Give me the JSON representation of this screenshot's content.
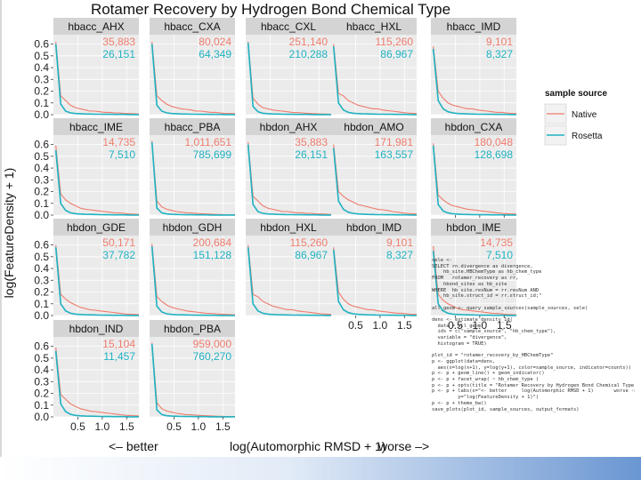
{
  "figure": {
    "title": "Rotamer Recovery by Hydrogen Bond Chemical Type",
    "xlabel": "log(Automorphic RMSD + 1)",
    "xlabel_left": "<– better",
    "xlabel_right": "worse –>",
    "ylabel": "log(FeatureDensity + 1)"
  },
  "legend": {
    "title": "sample source",
    "items": [
      {
        "label": "Native",
        "color": "#ee7b6c"
      },
      {
        "label": "Rosetta",
        "color": "#1fb2c1"
      }
    ]
  },
  "colors": {
    "panel_bg": "#ebebeb",
    "strip_bg": "#d4d4d4",
    "grid": "#ffffff",
    "native": "#ee7b6c",
    "rosetta": "#1fb2c1"
  },
  "code_lines": [
    "sele <-",
    "SELECT rn.divergence as divergence,",
    "    hb_site.HBChemType as hb_chem_type",
    "FROM   rotamer_recovery as rr,",
    "    hbond_sites as hb_site",
    "WHERE  hb_site.resNum = rr.resNum AND",
    "    hb_site.struct_id = rr.struct_id;\"",
    "",
    "all_geom <- query_sample_sources(sample_sources, sele)",
    "",
    "dens <- estimate_density_1d(",
    "  data = all_geom,",
    "  ids = c(\"sample_source\", \"hb_chem_type\"),",
    "  variable = \"divergence\",",
    "  histogram = TRUE)",
    "",
    "plot_id = \"rotamer_recovery_by_HBChemType\"",
    "p <- ggplot(data=dens,",
    "  aes(x=log(x+1), y=log(y+1), color=sample_source, indicator=counts))",
    "p <- p + geom_line() + geom_indicator()",
    "p <- p + facet_wrap( ~ hb_chem_type )",
    "p <- p + opts(title = \"Rotamer Recovery by Hydrogen Bond Chemical Type\")",
    "p <- p + labs(x=\"<- better     log(Automorphic RMSD + 1)       worse ->\",",
    "         y=\"log(FeatureDensity + 1)\")",
    "p <- p + theme_bw()",
    "save_plots(plot_id, sample_sources, output_formats)"
  ],
  "chart_data": {
    "type": "line",
    "x": [
      0.05,
      0.15,
      0.25,
      0.35,
      0.45,
      0.55,
      0.65,
      0.75,
      0.85,
      0.95,
      1.05,
      1.15,
      1.25,
      1.35,
      1.45,
      1.55,
      1.65,
      1.75
    ],
    "xlim": [
      0,
      1.75
    ],
    "ylim": [
      0,
      0.68
    ],
    "x_ticks": [
      "0.5",
      "1.0",
      "1.5"
    ],
    "x_tick_values": [
      0.5,
      1.0,
      1.5
    ],
    "y_ticks": [
      "0.0",
      "0.1",
      "0.2",
      "0.3",
      "0.4",
      "0.5",
      "0.6"
    ],
    "y_tick_values": [
      0,
      0.1,
      0.2,
      0.3,
      0.4,
      0.5,
      0.6
    ],
    "panels": [
      {
        "label": "hbacc_AHX",
        "native_count": "35,883",
        "rosetta_count": "26,151",
        "native": [
          0.62,
          0.16,
          0.12,
          0.08,
          0.06,
          0.05,
          0.04,
          0.03,
          0.03,
          0.025,
          0.02,
          0.02,
          0.015,
          0.015,
          0.01,
          0.01,
          0.008,
          0.005
        ],
        "rosetta": [
          0.6,
          0.09,
          0.03,
          0.015,
          0.01,
          0.008,
          0.006,
          0.005,
          0.004,
          0.004,
          0.003,
          0.003,
          0.002,
          0.002,
          0.002,
          0.001,
          0.001,
          0.001
        ]
      },
      {
        "label": "hbacc_CXA",
        "native_count": "80,024",
        "rosetta_count": "64,349",
        "native": [
          0.62,
          0.16,
          0.12,
          0.09,
          0.07,
          0.06,
          0.05,
          0.045,
          0.04,
          0.03,
          0.03,
          0.025,
          0.02,
          0.02,
          0.015,
          0.01,
          0.01,
          0.008
        ],
        "rosetta": [
          0.6,
          0.08,
          0.03,
          0.015,
          0.01,
          0.008,
          0.006,
          0.005,
          0.004,
          0.004,
          0.003,
          0.003,
          0.002,
          0.002,
          0.002,
          0.001,
          0.001,
          0.001
        ]
      },
      {
        "label": "hbacc_CXL",
        "native_count": "251,140",
        "rosetta_count": "210,288",
        "native": [
          0.62,
          0.14,
          0.09,
          0.06,
          0.05,
          0.04,
          0.035,
          0.03,
          0.025,
          0.02,
          0.018,
          0.015,
          0.012,
          0.01,
          0.008,
          0.006,
          0.005,
          0.004
        ],
        "rosetta": [
          0.61,
          0.07,
          0.025,
          0.012,
          0.008,
          0.006,
          0.005,
          0.004,
          0.003,
          0.003,
          0.002,
          0.002,
          0.002,
          0.001,
          0.001,
          0.001,
          0.001,
          0.001
        ]
      },
      {
        "label": "hbacc_HXL",
        "native_count": "115,260",
        "rosetta_count": "86,967",
        "native": [
          0.6,
          0.18,
          0.16,
          0.12,
          0.1,
          0.08,
          0.07,
          0.06,
          0.05,
          0.05,
          0.04,
          0.035,
          0.03,
          0.025,
          0.02,
          0.015,
          0.012,
          0.01
        ],
        "rosetta": [
          0.58,
          0.1,
          0.04,
          0.02,
          0.012,
          0.009,
          0.007,
          0.006,
          0.005,
          0.004,
          0.004,
          0.003,
          0.003,
          0.002,
          0.002,
          0.002,
          0.001,
          0.001
        ]
      },
      {
        "label": "hbacc_IMD",
        "native_count": "9,101",
        "rosetta_count": "8,327",
        "native": [
          0.58,
          0.2,
          0.14,
          0.1,
          0.08,
          0.07,
          0.06,
          0.05,
          0.05,
          0.04,
          0.035,
          0.03,
          0.025,
          0.02,
          0.02,
          0.015,
          0.01,
          0.01
        ],
        "rosetta": [
          0.56,
          0.12,
          0.05,
          0.025,
          0.015,
          0.01,
          0.008,
          0.006,
          0.005,
          0.004,
          0.004,
          0.003,
          0.003,
          0.002,
          0.002,
          0.002,
          0.001,
          0.001
        ]
      },
      {
        "label": "hbacc_IME",
        "native_count": "14,735",
        "rosetta_count": "7,510",
        "native": [
          0.59,
          0.18,
          0.13,
          0.1,
          0.08,
          0.06,
          0.05,
          0.045,
          0.04,
          0.035,
          0.03,
          0.025,
          0.02,
          0.018,
          0.015,
          0.01,
          0.008,
          0.006
        ],
        "rosetta": [
          0.55,
          0.1,
          0.04,
          0.02,
          0.012,
          0.009,
          0.007,
          0.006,
          0.005,
          0.004,
          0.003,
          0.003,
          0.002,
          0.002,
          0.002,
          0.001,
          0.001,
          0.001
        ]
      },
      {
        "label": "hbacc_PBA",
        "native_count": "1,011,651",
        "rosetta_count": "785,699",
        "native": [
          0.63,
          0.12,
          0.07,
          0.05,
          0.04,
          0.03,
          0.025,
          0.02,
          0.018,
          0.015,
          0.012,
          0.01,
          0.008,
          0.006,
          0.005,
          0.004,
          0.003,
          0.003
        ],
        "rosetta": [
          0.62,
          0.06,
          0.02,
          0.01,
          0.007,
          0.005,
          0.004,
          0.003,
          0.003,
          0.002,
          0.002,
          0.002,
          0.001,
          0.001,
          0.001,
          0.001,
          0.001,
          0.001
        ]
      },
      {
        "label": "hbdon_AHX",
        "native_count": "35,883",
        "rosetta_count": "26,151",
        "native": [
          0.62,
          0.16,
          0.12,
          0.08,
          0.06,
          0.05,
          0.04,
          0.03,
          0.03,
          0.025,
          0.02,
          0.02,
          0.015,
          0.015,
          0.01,
          0.01,
          0.008,
          0.005
        ],
        "rosetta": [
          0.6,
          0.09,
          0.03,
          0.015,
          0.01,
          0.008,
          0.006,
          0.005,
          0.004,
          0.004,
          0.003,
          0.003,
          0.002,
          0.002,
          0.002,
          0.001,
          0.001,
          0.001
        ]
      },
      {
        "label": "hbdon_AMO",
        "native_count": "171,981",
        "rosetta_count": "163,557",
        "native": [
          0.6,
          0.2,
          0.16,
          0.13,
          0.11,
          0.09,
          0.08,
          0.07,
          0.06,
          0.05,
          0.045,
          0.04,
          0.03,
          0.025,
          0.02,
          0.015,
          0.012,
          0.01
        ],
        "rosetta": [
          0.57,
          0.12,
          0.05,
          0.025,
          0.015,
          0.01,
          0.008,
          0.006,
          0.005,
          0.004,
          0.004,
          0.003,
          0.003,
          0.002,
          0.002,
          0.002,
          0.001,
          0.001
        ]
      },
      {
        "label": "hbdon_CXA",
        "native_count": "180,048",
        "rosetta_count": "128,698",
        "native": [
          0.61,
          0.17,
          0.13,
          0.1,
          0.08,
          0.07,
          0.06,
          0.05,
          0.045,
          0.04,
          0.035,
          0.03,
          0.025,
          0.02,
          0.015,
          0.012,
          0.01,
          0.008
        ],
        "rosetta": [
          0.59,
          0.09,
          0.035,
          0.018,
          0.011,
          0.008,
          0.006,
          0.005,
          0.004,
          0.004,
          0.003,
          0.003,
          0.002,
          0.002,
          0.002,
          0.001,
          0.001,
          0.001
        ]
      },
      {
        "label": "hbdon_GDE",
        "native_count": "50,171",
        "rosetta_count": "37,782",
        "native": [
          0.6,
          0.18,
          0.14,
          0.11,
          0.09,
          0.07,
          0.06,
          0.05,
          0.045,
          0.04,
          0.035,
          0.03,
          0.025,
          0.02,
          0.015,
          0.012,
          0.01,
          0.008
        ],
        "rosetta": [
          0.58,
          0.1,
          0.04,
          0.02,
          0.012,
          0.009,
          0.007,
          0.006,
          0.005,
          0.004,
          0.003,
          0.003,
          0.002,
          0.002,
          0.002,
          0.001,
          0.001,
          0.001
        ]
      },
      {
        "label": "hbdon_GDH",
        "native_count": "200,684",
        "rosetta_count": "151,128",
        "native": [
          0.61,
          0.16,
          0.12,
          0.09,
          0.07,
          0.06,
          0.05,
          0.04,
          0.035,
          0.03,
          0.025,
          0.02,
          0.018,
          0.015,
          0.012,
          0.01,
          0.008,
          0.006
        ],
        "rosetta": [
          0.59,
          0.08,
          0.03,
          0.015,
          0.01,
          0.007,
          0.006,
          0.005,
          0.004,
          0.003,
          0.003,
          0.002,
          0.002,
          0.002,
          0.001,
          0.001,
          0.001,
          0.001
        ]
      },
      {
        "label": "hbdon_HXL",
        "native_count": "115,260",
        "rosetta_count": "86,967",
        "native": [
          0.6,
          0.18,
          0.16,
          0.12,
          0.1,
          0.08,
          0.07,
          0.06,
          0.05,
          0.05,
          0.04,
          0.035,
          0.03,
          0.025,
          0.02,
          0.015,
          0.012,
          0.01
        ],
        "rosetta": [
          0.58,
          0.1,
          0.04,
          0.02,
          0.012,
          0.009,
          0.007,
          0.006,
          0.005,
          0.004,
          0.004,
          0.003,
          0.003,
          0.002,
          0.002,
          0.002,
          0.001,
          0.001
        ]
      },
      {
        "label": "hbdon_IMD",
        "native_count": "9,101",
        "rosetta_count": "8,327",
        "native": [
          0.58,
          0.2,
          0.14,
          0.1,
          0.08,
          0.07,
          0.06,
          0.05,
          0.05,
          0.04,
          0.035,
          0.03,
          0.025,
          0.02,
          0.02,
          0.015,
          0.01,
          0.01
        ],
        "rosetta": [
          0.56,
          0.12,
          0.05,
          0.025,
          0.015,
          0.01,
          0.008,
          0.006,
          0.005,
          0.004,
          0.004,
          0.003,
          0.003,
          0.002,
          0.002,
          0.002,
          0.001,
          0.001
        ]
      },
      {
        "label": "hbdon_IME",
        "native_count": "14,735",
        "rosetta_count": "7,510",
        "native": [
          0.59,
          0.18,
          0.13,
          0.1,
          0.08,
          0.06,
          0.05,
          0.045,
          0.04,
          0.035,
          0.03,
          0.025,
          0.02,
          0.018,
          0.015,
          0.01,
          0.008,
          0.006
        ],
        "rosetta": [
          0.55,
          0.1,
          0.04,
          0.02,
          0.012,
          0.009,
          0.007,
          0.006,
          0.005,
          0.004,
          0.003,
          0.003,
          0.002,
          0.002,
          0.002,
          0.001,
          0.001,
          0.001
        ]
      },
      {
        "label": "hbdon_IND",
        "native_count": "15,104",
        "rosetta_count": "11,457",
        "native": [
          0.59,
          0.19,
          0.15,
          0.11,
          0.09,
          0.07,
          0.06,
          0.05,
          0.045,
          0.04,
          0.035,
          0.03,
          0.025,
          0.02,
          0.015,
          0.012,
          0.01,
          0.008
        ],
        "rosetta": [
          0.56,
          0.11,
          0.045,
          0.022,
          0.013,
          0.009,
          0.007,
          0.006,
          0.005,
          0.004,
          0.003,
          0.003,
          0.002,
          0.002,
          0.002,
          0.001,
          0.001,
          0.001
        ]
      },
      {
        "label": "hbdon_PBA",
        "native_count": "959,000",
        "rosetta_count": "760,270",
        "native": [
          0.63,
          0.12,
          0.07,
          0.05,
          0.04,
          0.03,
          0.025,
          0.02,
          0.018,
          0.015,
          0.012,
          0.01,
          0.008,
          0.006,
          0.005,
          0.004,
          0.003,
          0.003
        ],
        "rosetta": [
          0.62,
          0.06,
          0.02,
          0.01,
          0.007,
          0.005,
          0.004,
          0.003,
          0.003,
          0.002,
          0.002,
          0.002,
          0.001,
          0.001,
          0.001,
          0.001,
          0.001,
          0.001
        ]
      }
    ]
  }
}
